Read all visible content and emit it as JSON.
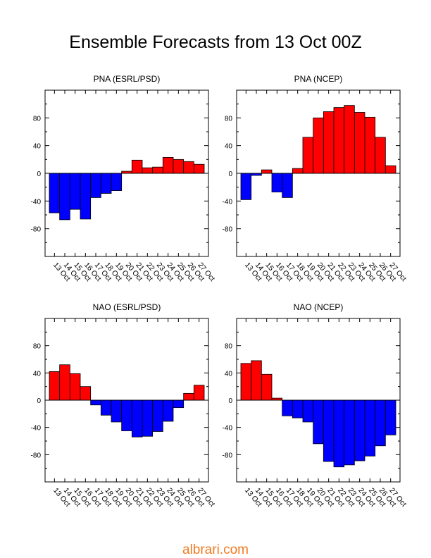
{
  "title": "Ensemble Forecasts from 13 Oct 00Z",
  "watermark": "albrari.com",
  "colors": {
    "positive": "#ff0000",
    "negative": "#0000ff",
    "axis": "#000000"
  },
  "chart_data": [
    {
      "type": "bar",
      "title": "PNA (ESRL/PSD)",
      "categories": [
        "13 Oct",
        "14 Oct",
        "15 Oct",
        "16 Oct",
        "17 Oct",
        "18 Oct",
        "19 Oct",
        "20 Oct",
        "21 Oct",
        "22 Oct",
        "23 Oct",
        "24 Oct",
        "25 Oct",
        "26 Oct",
        "27 Oct"
      ],
      "values": [
        -57,
        -67,
        -52,
        -66,
        -35,
        -29,
        -25,
        3,
        19,
        8,
        9,
        23,
        20,
        17,
        13
      ],
      "ylim": [
        -120,
        120
      ],
      "yticks": [
        -80,
        -40,
        0,
        40,
        80
      ],
      "xlabel": "",
      "ylabel": "",
      "grid": false
    },
    {
      "type": "bar",
      "title": "PNA (NCEP)",
      "categories": [
        "13 Oct",
        "14 Oct",
        "15 Oct",
        "16 Oct",
        "17 Oct",
        "18 Oct",
        "19 Oct",
        "20 Oct",
        "21 Oct",
        "22 Oct",
        "23 Oct",
        "24 Oct",
        "25 Oct",
        "26 Oct",
        "27 Oct"
      ],
      "values": [
        -38,
        -3,
        5,
        -27,
        -35,
        7,
        52,
        80,
        89,
        95,
        98,
        88,
        81,
        52,
        11
      ],
      "ylim": [
        -120,
        120
      ],
      "yticks": [
        -80,
        -40,
        0,
        40,
        80
      ],
      "xlabel": "",
      "ylabel": "",
      "grid": false
    },
    {
      "type": "bar",
      "title": "NAO (ESRL/PSD)",
      "categories": [
        "13 Oct",
        "14 Oct",
        "15 Oct",
        "16 Oct",
        "17 Oct",
        "18 Oct",
        "19 Oct",
        "20 Oct",
        "21 Oct",
        "22 Oct",
        "23 Oct",
        "24 Oct",
        "25 Oct",
        "26 Oct",
        "27 Oct"
      ],
      "values": [
        42,
        52,
        39,
        20,
        -7,
        -22,
        -32,
        -45,
        -54,
        -53,
        -46,
        -31,
        -11,
        10,
        22
      ],
      "ylim": [
        -120,
        120
      ],
      "yticks": [
        -80,
        -40,
        0,
        40,
        80
      ],
      "xlabel": "",
      "ylabel": "",
      "grid": false
    },
    {
      "type": "bar",
      "title": "NAO (NCEP)",
      "categories": [
        "13 Oct",
        "14 Oct",
        "15 Oct",
        "16 Oct",
        "17 Oct",
        "18 Oct",
        "19 Oct",
        "20 Oct",
        "21 Oct",
        "22 Oct",
        "23 Oct",
        "24 Oct",
        "25 Oct",
        "26 Oct",
        "27 Oct"
      ],
      "values": [
        54,
        58,
        38,
        3,
        -23,
        -26,
        -32,
        -64,
        -90,
        -98,
        -95,
        -89,
        -82,
        -67,
        -51
      ],
      "ylim": [
        -120,
        120
      ],
      "yticks": [
        -80,
        -40,
        0,
        40,
        80
      ],
      "xlabel": "",
      "ylabel": "",
      "grid": false
    }
  ]
}
